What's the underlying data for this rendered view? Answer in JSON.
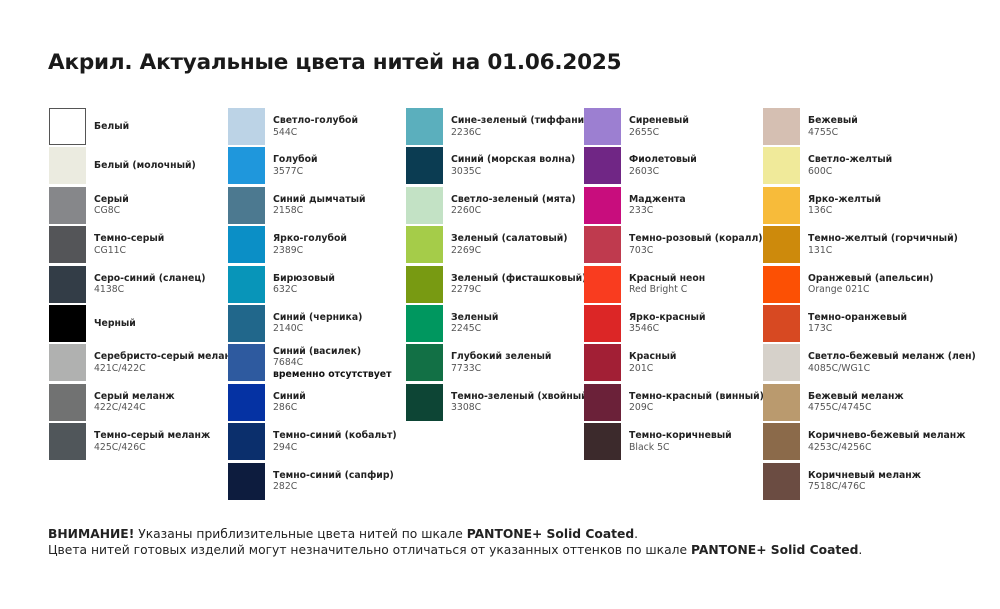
{
  "title": "Акрил. Актуальные цвета нитей на 01.06.2025",
  "columns": [
    [
      {
        "name": "Белый",
        "code": "",
        "color": "#ffffff"
      },
      {
        "name": "Белый (молочный)",
        "code": "",
        "color": "#ebebe0"
      },
      {
        "name": "Серый",
        "code": "CG8C",
        "color": "#86878a"
      },
      {
        "name": "Темно-серый",
        "code": "CG11C",
        "color": "#545558"
      },
      {
        "name": "Серо-синий (сланец)",
        "code": "4138C",
        "color": "#333d47"
      },
      {
        "name": "Черный",
        "code": "",
        "color": "#000000"
      },
      {
        "name": "Серебристо-серый меланж",
        "code": "421C/422C",
        "color": "#b0b1b0"
      },
      {
        "name": "Серый меланж",
        "code": "422C/424C",
        "color": "#717272"
      },
      {
        "name": "Темно-серый меланж",
        "code": "425C/426C",
        "color": "#50565a"
      }
    ],
    [
      {
        "name": "Светло-голубой",
        "code": "544C",
        "color": "#bcd3e6"
      },
      {
        "name": "Голубой",
        "code": "3577C",
        "color": "#1f97dc"
      },
      {
        "name": "Синий дымчатый",
        "code": "2158C",
        "color": "#4c7990"
      },
      {
        "name": "Ярко-голубой",
        "code": "2389C",
        "color": "#0b8fc6"
      },
      {
        "name": "Бирюзовый",
        "code": "632C",
        "color": "#0895b9"
      },
      {
        "name": "Синий (черника)",
        "code": "2140C",
        "color": "#21678b"
      },
      {
        "name": "Синий (василек)",
        "code": "7684C",
        "note": "временно отсутствует",
        "color": "#2e5a9f"
      },
      {
        "name": "Синий",
        "code": "286C",
        "color": "#0532a3"
      },
      {
        "name": "Темно-синий (кобальт)",
        "code": "294C",
        "color": "#0b2f6c"
      },
      {
        "name": "Темно-синий (сапфир)",
        "code": "282C",
        "color": "#0d1c3e"
      }
    ],
    [
      {
        "name": "Сине-зеленый (тиффани)",
        "code": "2236C",
        "color": "#5bafbd"
      },
      {
        "name": "Синий (морская волна)",
        "code": "3035C",
        "color": "#0b3c52"
      },
      {
        "name": "Светло-зеленый (мята)",
        "code": "2260C",
        "color": "#c3e2c5"
      },
      {
        "name": "Зеленый (салатовый)",
        "code": "2269C",
        "color": "#a5cc49"
      },
      {
        "name": "Зеленый (фисташковый)",
        "code": "2279C",
        "color": "#789a12"
      },
      {
        "name": "Зеленый",
        "code": "2245C",
        "color": "#00975f"
      },
      {
        "name": "Глубокий зеленый",
        "code": "7733C",
        "color": "#127045"
      },
      {
        "name": "Темно-зеленый (хвойный)",
        "code": "3308C",
        "color": "#0d4535"
      }
    ],
    [
      {
        "name": "Сиреневый",
        "code": "2655C",
        "color": "#9c7fd1"
      },
      {
        "name": "Фиолетовый",
        "code": "2603C",
        "color": "#702685"
      },
      {
        "name": "Маджента",
        "code": "233C",
        "color": "#c80d7d"
      },
      {
        "name": "Темно-розовый (коралл)",
        "code": "703C",
        "color": "#bf3a4e"
      },
      {
        "name": "Красный неон",
        "code": "Red Bright C",
        "color": "#f93c1f"
      },
      {
        "name": "Ярко-красный",
        "code": "3546C",
        "color": "#dc2626"
      },
      {
        "name": "Красный",
        "code": "201C",
        "color": "#a21f35"
      },
      {
        "name": "Темно-красный (винный)",
        "code": "209C",
        "color": "#6b2139"
      },
      {
        "name": "Темно-коричневый",
        "code": "Black 5C",
        "color": "#3c2a2c"
      }
    ],
    [
      {
        "name": "Бежевый",
        "code": "4755C",
        "color": "#d5bfb2"
      },
      {
        "name": "Светло-желтый",
        "code": "600C",
        "color": "#f0ea9a"
      },
      {
        "name": "Ярко-желтый",
        "code": "136C",
        "color": "#f7bb3a"
      },
      {
        "name": "Темно-желтый (горчичный)",
        "code": "131C",
        "color": "#cd8a0c"
      },
      {
        "name": "Оранжевый (апельсин)",
        "code": "Orange 021C",
        "color": "#fc5004"
      },
      {
        "name": "Темно-оранжевый",
        "code": "173C",
        "color": "#d74922"
      },
      {
        "name": "Светло-бежевый меланж (лен)",
        "code": "4085C/WG1C",
        "color": "#d6d1ca"
      },
      {
        "name": "Бежевый меланж",
        "code": "4755C/4745C",
        "color": "#ba9a6e"
      },
      {
        "name": "Коричнево-бежевый меланж",
        "code": "4253C/4256C",
        "color": "#8b6a4a"
      },
      {
        "name": "Коричневый меланж",
        "code": "7518C/476C",
        "color": "#6b4c42"
      }
    ]
  ],
  "footer": {
    "warning_label": "ВНИМАНИЕ!",
    "line1_text": " Указаны приблизительные цвета нитей по шкале ",
    "line1_scale": "PANTONE+ Solid Coated",
    "line1_end": ".",
    "line2_text": "Цвета нитей готовых изделий могут незначительно отличаться от указанных оттенков по шкале ",
    "line2_scale": "PANTONE+ Solid Coated",
    "line2_end": "."
  }
}
